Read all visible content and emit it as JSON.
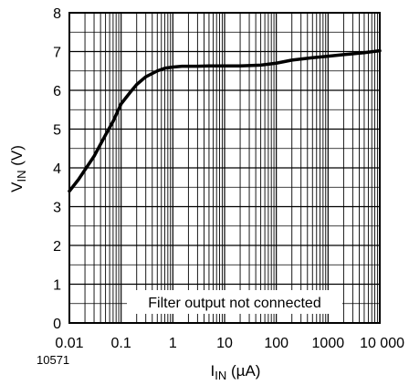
{
  "chart_data": {
    "type": "line",
    "x_scale": "log",
    "xlim": [
      0.01,
      10000
    ],
    "ylim": [
      0,
      8
    ],
    "grid": true,
    "x_tick_values": [
      0.01,
      0.1,
      1,
      10,
      100,
      1000,
      10000
    ],
    "x_tick_labels": [
      "0.01",
      "0.1",
      "1",
      "10",
      "100",
      "1000",
      "10 000"
    ],
    "y_tick_values": [
      0,
      1,
      2,
      3,
      4,
      5,
      6,
      7,
      8
    ],
    "y_tick_labels": [
      "0",
      "1",
      "2",
      "3",
      "4",
      "5",
      "6",
      "7",
      "8"
    ],
    "xlabel_main": "I",
    "xlabel_sub": "IN",
    "xlabel_unit": " (µA)",
    "ylabel_main": "V",
    "ylabel_sub": "IN",
    "ylabel_unit": " (V)",
    "annotation": "Filter output not connected",
    "figure_id": "10571",
    "series": [
      {
        "x": [
          0.01,
          0.015,
          0.02,
          0.03,
          0.05,
          0.07,
          0.1,
          0.15,
          0.2,
          0.3,
          0.5,
          0.7,
          1,
          1.5,
          2,
          3,
          5,
          10,
          20,
          50,
          100,
          200,
          500,
          1000,
          2000,
          5000,
          10000
        ],
        "y": [
          3.4,
          3.7,
          3.95,
          4.3,
          4.85,
          5.2,
          5.65,
          5.95,
          6.15,
          6.35,
          6.5,
          6.57,
          6.6,
          6.62,
          6.62,
          6.62,
          6.63,
          6.63,
          6.63,
          6.65,
          6.7,
          6.78,
          6.84,
          6.88,
          6.92,
          6.97,
          7.02
        ]
      }
    ]
  }
}
